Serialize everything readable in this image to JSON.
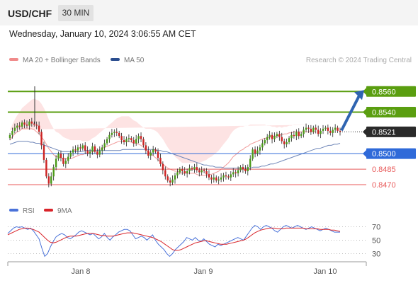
{
  "header": {
    "pair": "USD/CHF",
    "timeframe": "30 MIN"
  },
  "datetime": "Wednesday, January 10, 2024 3:06:55 AM CET",
  "legend": {
    "ma20_bb": "MA 20 + Bollinger Bands",
    "ma50": "MA 50"
  },
  "credit": "Research © 2024 Trading Central",
  "rsi_legend": {
    "rsi": "RSI",
    "ma9": "9MA"
  },
  "colors": {
    "green": "#5a9e10",
    "blue": "#2f6ad9",
    "red": "#e85a5a",
    "candle_up": "#4a9a18",
    "candle_down": "#cc2222",
    "dark_label": "#2a2a2a",
    "arrow": "#2f64b1"
  },
  "chart_data": [
    {
      "type": "candlestick",
      "title": "",
      "xticks": [
        "Jan 8",
        "Jan 9",
        "Jan 10"
      ],
      "ylim": [
        0.8455,
        0.858
      ],
      "levels": [
        {
          "label": "0.8560",
          "value": 0.856,
          "kind": "resistance",
          "color": "#5a9e10"
        },
        {
          "label": "0.8540",
          "value": 0.854,
          "kind": "resistance",
          "color": "#5a9e10"
        },
        {
          "label": "0.8521",
          "value": 0.8521,
          "kind": "current",
          "color": "#2a2a2a"
        },
        {
          "label": "0.8500",
          "value": 0.85,
          "kind": "pivot",
          "color": "#2f6ad9"
        },
        {
          "label": "0.8485",
          "value": 0.8485,
          "kind": "support",
          "color": "#e85a5a"
        },
        {
          "label": "0.8470",
          "value": 0.847,
          "kind": "support",
          "color": "#e85a5a"
        }
      ],
      "close": [
        0.8518,
        0.8522,
        0.8525,
        0.8527,
        0.8526,
        0.853,
        0.8528,
        0.8527,
        0.8531,
        0.8529,
        0.8528,
        0.8527,
        0.8521,
        0.8508,
        0.8494,
        0.8478,
        0.8471,
        0.8478,
        0.8487,
        0.8495,
        0.85,
        0.8496,
        0.849,
        0.8493,
        0.8497,
        0.8501,
        0.8504,
        0.8503,
        0.8506,
        0.8505,
        0.8508,
        0.8503,
        0.85,
        0.8502,
        0.8507,
        0.8502,
        0.8499,
        0.8503,
        0.8506,
        0.851,
        0.8514,
        0.8518,
        0.852,
        0.8521,
        0.852,
        0.8517,
        0.8513,
        0.8511,
        0.8514,
        0.8515,
        0.8513,
        0.851,
        0.8514,
        0.8517,
        0.8514,
        0.8508,
        0.8503,
        0.8498,
        0.8501,
        0.8504,
        0.8502,
        0.8496,
        0.849,
        0.8484,
        0.8478,
        0.8474,
        0.8472,
        0.8475,
        0.8479,
        0.8482,
        0.8485,
        0.8483,
        0.8481,
        0.8483,
        0.8486,
        0.8485,
        0.8487,
        0.8484,
        0.8482,
        0.8484,
        0.8483,
        0.848,
        0.8477,
        0.8475,
        0.8477,
        0.8474,
        0.8475,
        0.8477,
        0.8479,
        0.8478,
        0.8477,
        0.848,
        0.8482,
        0.8481,
        0.8484,
        0.8487,
        0.8485,
        0.8483,
        0.8487,
        0.8495,
        0.8504,
        0.85,
        0.8503,
        0.8506,
        0.851,
        0.8513,
        0.8516,
        0.8518,
        0.8514,
        0.8517,
        0.8519,
        0.8516,
        0.8512,
        0.8509,
        0.8511,
        0.8515,
        0.8518,
        0.8517,
        0.8521,
        0.8517,
        0.8519,
        0.8523,
        0.8525,
        0.8524,
        0.8521,
        0.8525,
        0.8523,
        0.8519,
        0.8522,
        0.8524,
        0.8525,
        0.8522,
        0.852,
        0.8523,
        0.8525,
        0.8522,
        0.8521
      ],
      "ma20": [
        0.8513,
        0.8516,
        0.8519,
        0.8521,
        0.8522,
        0.8524,
        0.8524,
        0.8524,
        0.8524,
        0.8524,
        0.8523,
        0.8521,
        0.8519,
        0.8516,
        0.8513,
        0.8509,
        0.8505,
        0.8502,
        0.8499,
        0.8497,
        0.8497,
        0.8496,
        0.8495,
        0.8495,
        0.8495,
        0.8495,
        0.8496,
        0.8497,
        0.8498,
        0.8499,
        0.8499,
        0.85,
        0.85,
        0.8501,
        0.8502,
        0.8502,
        0.8503,
        0.8504,
        0.8505,
        0.8506,
        0.8507,
        0.8508,
        0.8509,
        0.851,
        0.8511,
        0.8512,
        0.8512,
        0.8512,
        0.8512,
        0.8512,
        0.8511,
        0.851,
        0.851,
        0.8509,
        0.8508,
        0.8506,
        0.8504,
        0.8502,
        0.85,
        0.8498,
        0.8496,
        0.8494,
        0.8492,
        0.849,
        0.8488,
        0.8486,
        0.8485,
        0.8484,
        0.8483,
        0.8483,
        0.8482,
        0.8481,
        0.8481,
        0.8481,
        0.8481,
        0.8481,
        0.8481,
        0.848,
        0.8479,
        0.8479,
        0.8479,
        0.8479,
        0.848,
        0.848,
        0.8481,
        0.8482,
        0.8483,
        0.8485,
        0.8487,
        0.8489,
        0.8491,
        0.8494,
        0.8497,
        0.8499,
        0.8501,
        0.8503,
        0.8504,
        0.8506,
        0.8507,
        0.8509,
        0.851,
        0.8511,
        0.8512,
        0.8513,
        0.8514,
        0.8515,
        0.8515,
        0.8516,
        0.8516,
        0.8517,
        0.8517,
        0.8518,
        0.8518,
        0.8519,
        0.8519,
        0.852,
        0.852,
        0.8521,
        0.8521,
        0.8521,
        0.8521,
        0.8521,
        0.8521,
        0.8521,
        0.8521,
        0.8521,
        0.8521
      ],
      "ma50": [
        0.8509,
        0.851,
        0.8511,
        0.8512,
        0.8512,
        0.8512,
        0.8512,
        0.8511,
        0.8511,
        0.851,
        0.851,
        0.8509,
        0.8508,
        0.8507,
        0.8506,
        0.8505,
        0.8504,
        0.8503,
        0.8502,
        0.8502,
        0.8502,
        0.8502,
        0.8502,
        0.8502,
        0.8502,
        0.8502,
        0.8503,
        0.8503,
        0.8503,
        0.8503,
        0.8503,
        0.8503,
        0.8503,
        0.8503,
        0.8503,
        0.8503,
        0.8503,
        0.8503,
        0.8503,
        0.8504,
        0.8504,
        0.8504,
        0.8504,
        0.8504,
        0.8504,
        0.8504,
        0.8504,
        0.8504,
        0.8504,
        0.8504,
        0.8504,
        0.8503,
        0.8503,
        0.8502,
        0.8502,
        0.8501,
        0.85,
        0.8499,
        0.8498,
        0.8497,
        0.8496,
        0.8495,
        0.8494,
        0.8493,
        0.8492,
        0.8491,
        0.849,
        0.8489,
        0.8489,
        0.8488,
        0.8488,
        0.8487,
        0.8487,
        0.8487,
        0.8486,
        0.8486,
        0.8486,
        0.8486,
        0.8486,
        0.8486,
        0.8486,
        0.8486,
        0.8486,
        0.8486,
        0.8487,
        0.8487,
        0.8487,
        0.8488,
        0.8488,
        0.8489,
        0.849,
        0.849,
        0.8491,
        0.8492,
        0.8493,
        0.8494,
        0.8495,
        0.8496,
        0.8497,
        0.8498,
        0.8499,
        0.85,
        0.8501,
        0.8502,
        0.8503,
        0.8504,
        0.8505,
        0.8505,
        0.8506,
        0.8507,
        0.8508,
        0.8508,
        0.8509,
        0.8509,
        0.851
      ],
      "bb_width": [
        0.001,
        0.0012,
        0.0014,
        0.0016,
        0.0018,
        0.002,
        0.0022,
        0.0024,
        0.0026,
        0.0028,
        0.003,
        0.0031,
        0.0032,
        0.0032,
        0.0031,
        0.003,
        0.0028,
        0.0026,
        0.0025,
        0.0024,
        0.0023,
        0.0022,
        0.0021,
        0.002,
        0.0019,
        0.0018,
        0.0017,
        0.0016,
        0.0015,
        0.0014,
        0.0013,
        0.0012,
        0.0012,
        0.0012,
        0.0013,
        0.0014,
        0.0015,
        0.0016,
        0.0017,
        0.0018,
        0.0019,
        0.002,
        0.0021,
        0.0022,
        0.0023,
        0.0023,
        0.0024,
        0.0024,
        0.0024,
        0.0024,
        0.0023,
        0.0022,
        0.0021,
        0.002,
        0.0019,
        0.0019,
        0.002,
        0.0022,
        0.0024,
        0.0025,
        0.0026,
        0.0026,
        0.0025,
        0.0024,
        0.0022,
        0.002,
        0.0018,
        0.0016,
        0.0014,
        0.0012,
        0.0011,
        0.001,
        0.001,
        0.001,
        0.001,
        0.001,
        0.001,
        0.0011,
        0.0012,
        0.0013,
        0.0014,
        0.0015,
        0.0016,
        0.0017,
        0.0018,
        0.0019,
        0.002,
        0.0021,
        0.0022,
        0.0023,
        0.0024,
        0.0025,
        0.0025,
        0.0025,
        0.0024,
        0.0023,
        0.0022,
        0.0021,
        0.002,
        0.0019,
        0.0018,
        0.0017,
        0.0016,
        0.0015,
        0.0014,
        0.0013,
        0.0012,
        0.0011,
        0.001,
        0.0009,
        0.0008,
        0.0008,
        0.0007,
        0.0007,
        0.0007,
        0.0007,
        0.0007,
        0.0007
      ]
    },
    {
      "type": "line",
      "title": "",
      "yticks": [
        "70",
        "50",
        "30"
      ],
      "ylim": [
        20,
        80
      ],
      "series": [
        {
          "name": "RSI",
          "color": "#4a72d9",
          "values": [
            60,
            64,
            68,
            70,
            69,
            70,
            68,
            66,
            68,
            64,
            58,
            52,
            38,
            26,
            30,
            40,
            48,
            55,
            58,
            60,
            58,
            54,
            52,
            55,
            58,
            62,
            64,
            62,
            60,
            58,
            60,
            56,
            52,
            55,
            60,
            54,
            50,
            55,
            58,
            62,
            64,
            66,
            66,
            64,
            58,
            52,
            54,
            56,
            54,
            50,
            54,
            58,
            50,
            44,
            40,
            36,
            30,
            26,
            30,
            36,
            40,
            44,
            48,
            54,
            52,
            50,
            54,
            50,
            48,
            52,
            48,
            44,
            42,
            40,
            44,
            42,
            44,
            46,
            48,
            50,
            52,
            54,
            52,
            50,
            56,
            62,
            68,
            72,
            70,
            66,
            70,
            72,
            70,
            68,
            64,
            62,
            66,
            70,
            72,
            70,
            68,
            70,
            72,
            70,
            68,
            66,
            68,
            70,
            68,
            66,
            64,
            66,
            68,
            66,
            64,
            62,
            62,
            62
          ]
        },
        {
          "name": "9MA",
          "color": "#d9242a",
          "values": [
            58,
            60,
            62,
            64,
            66,
            67,
            68,
            68,
            67,
            66,
            64,
            62,
            58,
            54,
            50,
            47,
            46,
            47,
            49,
            51,
            53,
            55,
            56,
            56,
            56,
            57,
            58,
            59,
            60,
            60,
            60,
            59,
            58,
            57,
            57,
            56,
            56,
            56,
            57,
            58,
            59,
            60,
            61,
            61,
            61,
            60,
            59,
            58,
            57,
            56,
            55,
            54,
            52,
            50,
            48,
            45,
            42,
            39,
            36,
            35,
            35,
            36,
            38,
            40,
            42,
            44,
            46,
            47,
            48,
            49,
            49,
            48,
            47,
            46,
            45,
            44,
            44,
            44,
            45,
            46,
            47,
            48,
            49,
            50,
            52,
            55,
            58,
            61,
            63,
            65,
            66,
            67,
            68,
            68,
            68,
            67,
            67,
            67,
            68,
            68,
            68,
            68,
            68,
            68,
            68,
            67,
            67,
            67,
            67,
            67,
            66,
            66,
            66,
            66,
            65,
            65,
            64,
            63
          ]
        }
      ]
    }
  ]
}
